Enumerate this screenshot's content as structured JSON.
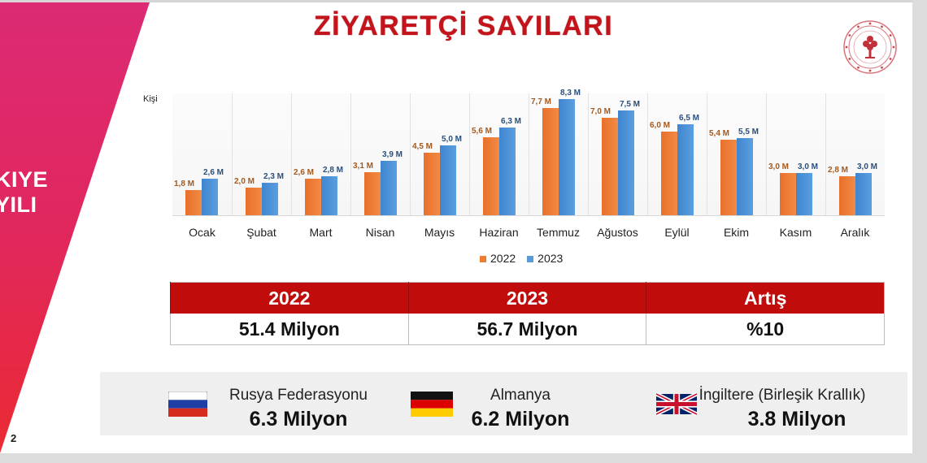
{
  "slide": {
    "title": "ZİYARETÇİ SAYILARI",
    "band_text_line1": "KIYE",
    "band_text_line2": "YILI",
    "page_number": "2",
    "logo": "ministry-emblem-icon",
    "colors": {
      "title": "#c3141c",
      "band_top": "#dc2a74",
      "band_bottom": "#ea2a33",
      "series_2022": "#ed7d31",
      "series_2023": "#5b9bd5",
      "table_header": "#c10c0c"
    }
  },
  "chart_data": {
    "type": "bar",
    "title": "ZİYARETÇİ SAYILARI",
    "ylabel": "Kişi",
    "xlabel": "",
    "categories": [
      "Ocak",
      "Şubat",
      "Mart",
      "Nisan",
      "Mayıs",
      "Haziran",
      "Temmuz",
      "Ağustos",
      "Eylül",
      "Ekim",
      "Kasım",
      "Aralık"
    ],
    "series": [
      {
        "name": "2022",
        "values": [
          1.8,
          2.0,
          2.6,
          3.1,
          4.5,
          5.6,
          7.7,
          7.0,
          6.0,
          5.4,
          3.0,
          2.8
        ],
        "labels": [
          "1,8 M",
          "2,0 M",
          "2,6 M",
          "3,1 M",
          "4,5 M",
          "5,6 M",
          "7,7 M",
          "7,0 M",
          "6,0 M",
          "5,4 M",
          "3,0 M",
          "2,8 M"
        ]
      },
      {
        "name": "2023",
        "values": [
          2.6,
          2.3,
          2.8,
          3.9,
          5.0,
          6.3,
          8.3,
          7.5,
          6.5,
          5.5,
          3.0,
          3.0
        ],
        "labels": [
          "2,6 M",
          "2,3 M",
          "2,8 M",
          "3,9 M",
          "5,0 M",
          "6,3 M",
          "8,3 M",
          "7,5 M",
          "6,5 M",
          "5,5 M",
          "3,0 M",
          "3,0 M"
        ]
      }
    ],
    "unit": "M",
    "ylim": [
      0,
      9
    ],
    "grid": "vertical category separators",
    "legend": {
      "position": "bottom",
      "entries": [
        "2022",
        "2023"
      ]
    }
  },
  "summary_table": {
    "headers": [
      "2022",
      "2023",
      "Artış"
    ],
    "values": [
      "51.4 Milyon",
      "56.7 Milyon",
      "%10"
    ]
  },
  "top_countries": [
    {
      "name": "Rusya Federasyonu",
      "value": "6.3 Milyon",
      "flag": "russia-flag-icon"
    },
    {
      "name": "Almanya",
      "value": "6.2 Milyon",
      "flag": "germany-flag-icon"
    },
    {
      "name": "İngiltere (Birleşik Krallık)",
      "value": "3.8 Milyon",
      "flag": "uk-flag-icon"
    }
  ]
}
